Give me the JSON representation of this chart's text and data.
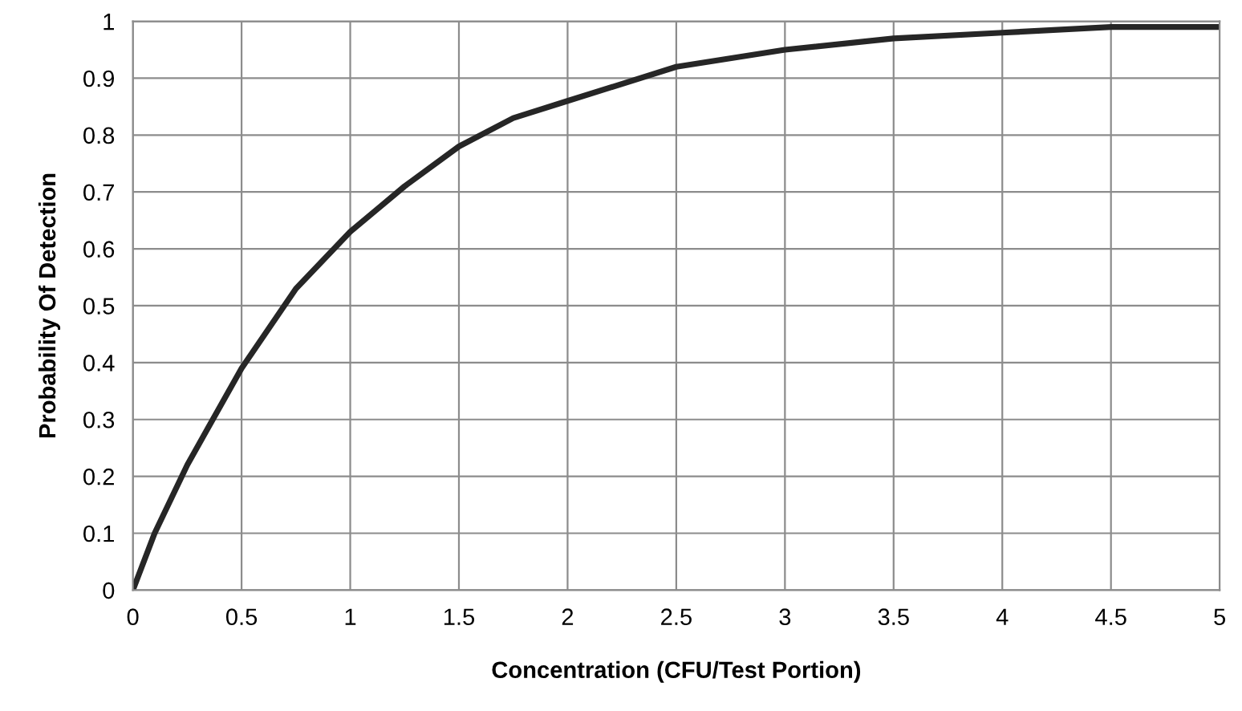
{
  "chart_data": {
    "type": "line",
    "xlabel": "Concentration (CFU/Test Portion)",
    "ylabel": "Probability Of Detection",
    "x": [
      0,
      0.1,
      0.25,
      0.5,
      0.75,
      1,
      1.25,
      1.5,
      1.75,
      2,
      2.5,
      3,
      3.5,
      4,
      4.5,
      5
    ],
    "series": [
      {
        "color": "#262626",
        "values": [
          0,
          0.1,
          0.22,
          0.39,
          0.53,
          0.63,
          0.71,
          0.78,
          0.83,
          0.86,
          0.92,
          0.95,
          0.97,
          0.98,
          0.99,
          0.99
        ]
      }
    ],
    "xlim": [
      0,
      5
    ],
    "ylim": [
      0,
      1
    ],
    "xticks": [
      0,
      0.5,
      1,
      1.5,
      2,
      2.5,
      3,
      3.5,
      4,
      4.5,
      5
    ],
    "yticks": [
      0,
      0.1,
      0.2,
      0.3,
      0.4,
      0.5,
      0.6,
      0.7,
      0.8,
      0.9,
      1
    ],
    "grid": true,
    "marker": "none",
    "line_style": "solid"
  }
}
